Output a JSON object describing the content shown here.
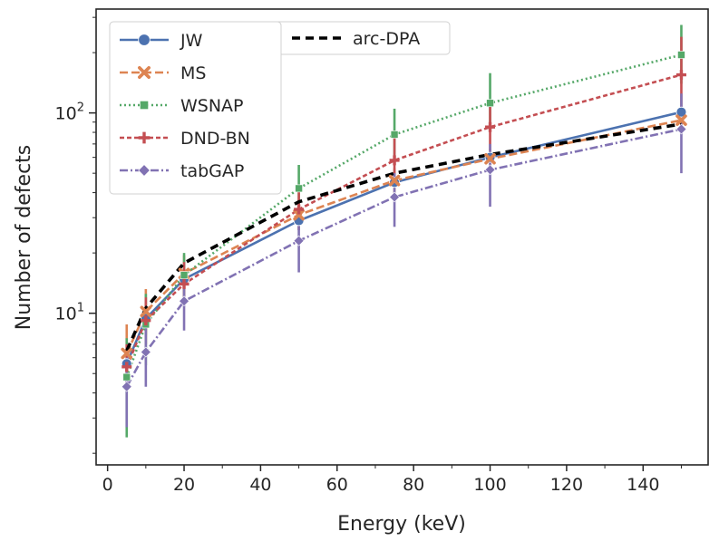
{
  "chart_data": {
    "type": "line",
    "title": "",
    "xlabel": "Energy (keV)",
    "ylabel": "Number of defects",
    "yscale": "log",
    "xlim": [
      -3,
      157
    ],
    "ylim": [
      1.75,
      330
    ],
    "grid": false,
    "legend_position": "upper-left",
    "xticks": [
      0,
      20,
      40,
      60,
      80,
      100,
      120,
      140
    ],
    "xtick_labels": [
      "0",
      "20",
      "40",
      "60",
      "80",
      "100",
      "120",
      "140"
    ],
    "yticks": [
      {
        "value": 10,
        "base": "10",
        "exp": "1"
      },
      {
        "value": 100,
        "base": "10",
        "exp": "2"
      }
    ],
    "series": [
      {
        "name": "JW",
        "color": "#4c72b0",
        "dash": "",
        "marker": "circle",
        "x": [
          5,
          10,
          20,
          50,
          75,
          100,
          150
        ],
        "y": [
          5.6,
          9.4,
          14.8,
          29,
          45,
          60,
          101
        ],
        "err": [
          [
            5.6,
            5.6
          ],
          [
            9.4,
            9.4
          ],
          [
            14.8,
            14.8
          ],
          [
            29,
            29
          ],
          [
            45,
            45
          ],
          [
            60,
            60
          ],
          [
            101,
            101
          ]
        ]
      },
      {
        "name": "MS",
        "color": "#dd8452",
        "dash": "9 4",
        "marker": "x",
        "x": [
          5,
          10,
          20,
          50,
          75,
          100,
          150
        ],
        "y": [
          6.3,
          10.2,
          15.8,
          31,
          46,
          59,
          92
        ],
        "err": [
          [
            4.5,
            8.8
          ],
          [
            7.8,
            13.2
          ],
          [
            12.5,
            19.5
          ],
          [
            26,
            37
          ],
          [
            40,
            53
          ],
          [
            53,
            66
          ],
          [
            80,
            105
          ]
        ]
      },
      {
        "name": "WSNAP",
        "color": "#55a868",
        "dash": "2 3",
        "marker": "square",
        "x": [
          5,
          10,
          20,
          50,
          75,
          100,
          150
        ],
        "y": [
          4.8,
          8.8,
          15.5,
          42,
          78,
          112,
          195
        ],
        "err": [
          [
            2.4,
            7.5
          ],
          [
            5.5,
            12.5
          ],
          [
            11.5,
            20
          ],
          [
            33,
            55
          ],
          [
            60,
            105
          ],
          [
            85,
            158
          ],
          [
            140,
            275
          ]
        ]
      },
      {
        "name": "DND-BN",
        "color": "#c44e52",
        "dash": "5 3",
        "marker": "plus",
        "x": [
          5,
          10,
          20,
          50,
          75,
          100,
          150
        ],
        "y": [
          5.4,
          9.2,
          14.0,
          33,
          58,
          85,
          155
        ],
        "err": [
          [
            4.2,
            7.0
          ],
          [
            7.0,
            12.0
          ],
          [
            11,
            18
          ],
          [
            26,
            43
          ],
          [
            45,
            78
          ],
          [
            65,
            115
          ],
          [
            100,
            240
          ]
        ]
      },
      {
        "name": "tabGAP",
        "color": "#8172b3",
        "dash": "9 3 2 3",
        "marker": "diamond",
        "x": [
          5,
          10,
          20,
          50,
          75,
          100,
          150
        ],
        "y": [
          4.3,
          6.4,
          11.5,
          23,
          38,
          52,
          83
        ],
        "err": [
          [
            2.7,
            6.0
          ],
          [
            4.3,
            8.5
          ],
          [
            8.2,
            15
          ],
          [
            16,
            30
          ],
          [
            27,
            50
          ],
          [
            34,
            70
          ],
          [
            50,
            125
          ]
        ]
      },
      {
        "name": "arc-DPA",
        "color": "#000000",
        "dash": "9 6",
        "marker": "none",
        "x": [
          5,
          10,
          20,
          50,
          75,
          100,
          150
        ],
        "y": [
          6.5,
          10.6,
          17.8,
          36,
          50,
          62,
          88
        ]
      }
    ]
  },
  "legend_left": [
    "JW",
    "MS",
    "WSNAP",
    "DND-BN",
    "tabGAP"
  ],
  "legend_right": [
    "arc-DPA"
  ]
}
